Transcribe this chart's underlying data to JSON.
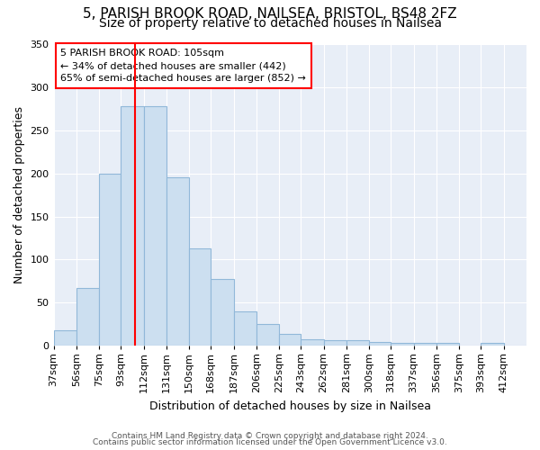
{
  "title_line1": "5, PARISH BROOK ROAD, NAILSEA, BRISTOL, BS48 2FZ",
  "title_line2": "Size of property relative to detached houses in Nailsea",
  "xlabel": "Distribution of detached houses by size in Nailsea",
  "ylabel": "Number of detached properties",
  "bar_edge_color": "#91b8d9",
  "bar_face_color": "#ccdff0",
  "red_line_x": 105,
  "categories": [
    "37sqm",
    "56sqm",
    "75sqm",
    "93sqm",
    "112sqm",
    "131sqm",
    "150sqm",
    "168sqm",
    "187sqm",
    "206sqm",
    "225sqm",
    "243sqm",
    "262sqm",
    "281sqm",
    "300sqm",
    "318sqm",
    "337sqm",
    "356sqm",
    "375sqm",
    "393sqm",
    "412sqm"
  ],
  "bin_edges": [
    37,
    56,
    75,
    93,
    112,
    131,
    150,
    168,
    187,
    206,
    225,
    243,
    262,
    281,
    300,
    318,
    337,
    356,
    375,
    393,
    412,
    431
  ],
  "bar_heights": [
    18,
    67,
    200,
    278,
    278,
    195,
    113,
    78,
    40,
    25,
    14,
    8,
    6,
    6,
    4,
    3,
    3,
    3,
    0,
    3,
    0
  ],
  "annotation_text": "5 PARISH BROOK ROAD: 105sqm\n← 34% of detached houses are smaller (442)\n65% of semi-detached houses are larger (852) →",
  "annotation_box_color": "white",
  "annotation_box_edge": "red",
  "footnote1": "Contains HM Land Registry data © Crown copyright and database right 2024.",
  "footnote2": "Contains public sector information licensed under the Open Government Licence v3.0.",
  "bg_color": "#e8eef7",
  "grid_color": "white",
  "ylim": [
    0,
    350
  ],
  "yticks": [
    0,
    50,
    100,
    150,
    200,
    250,
    300,
    350
  ],
  "title_fontsize": 11,
  "subtitle_fontsize": 10,
  "xlabel_fontsize": 9,
  "ylabel_fontsize": 9,
  "tick_fontsize": 8
}
